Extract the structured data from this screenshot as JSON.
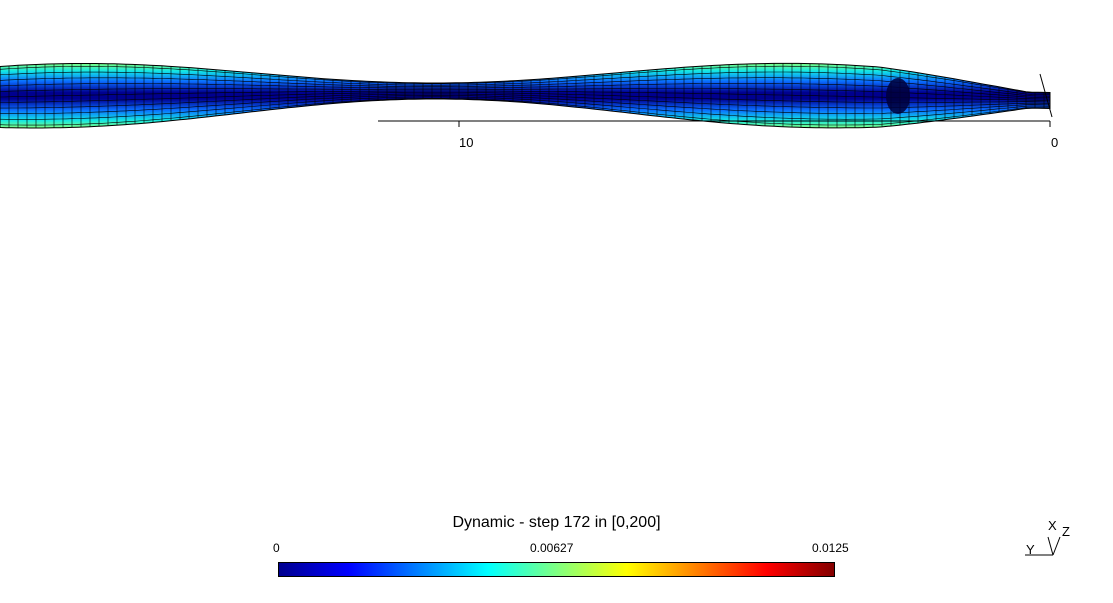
{
  "scene": {
    "axis_ticks": [
      {
        "label": "10"
      },
      {
        "label": "0"
      }
    ],
    "colormap": {
      "name": "jet",
      "stops": [
        "#00008f",
        "#0000ff",
        "#00ffff",
        "#80ff80",
        "#ffff00",
        "#ff8000",
        "#ff0000",
        "#800000"
      ]
    },
    "mesh_edge_color": "#000000"
  },
  "colorbar": {
    "title": "Dynamic - step 172 in [0,200]",
    "min_label": "0",
    "mid_label": "0.00627",
    "max_label": "0.0125",
    "min": 0,
    "mid": 0.00627,
    "max": 0.0125
  },
  "triad": {
    "x_label": "X",
    "y_label": "Y",
    "z_label": "Z"
  }
}
